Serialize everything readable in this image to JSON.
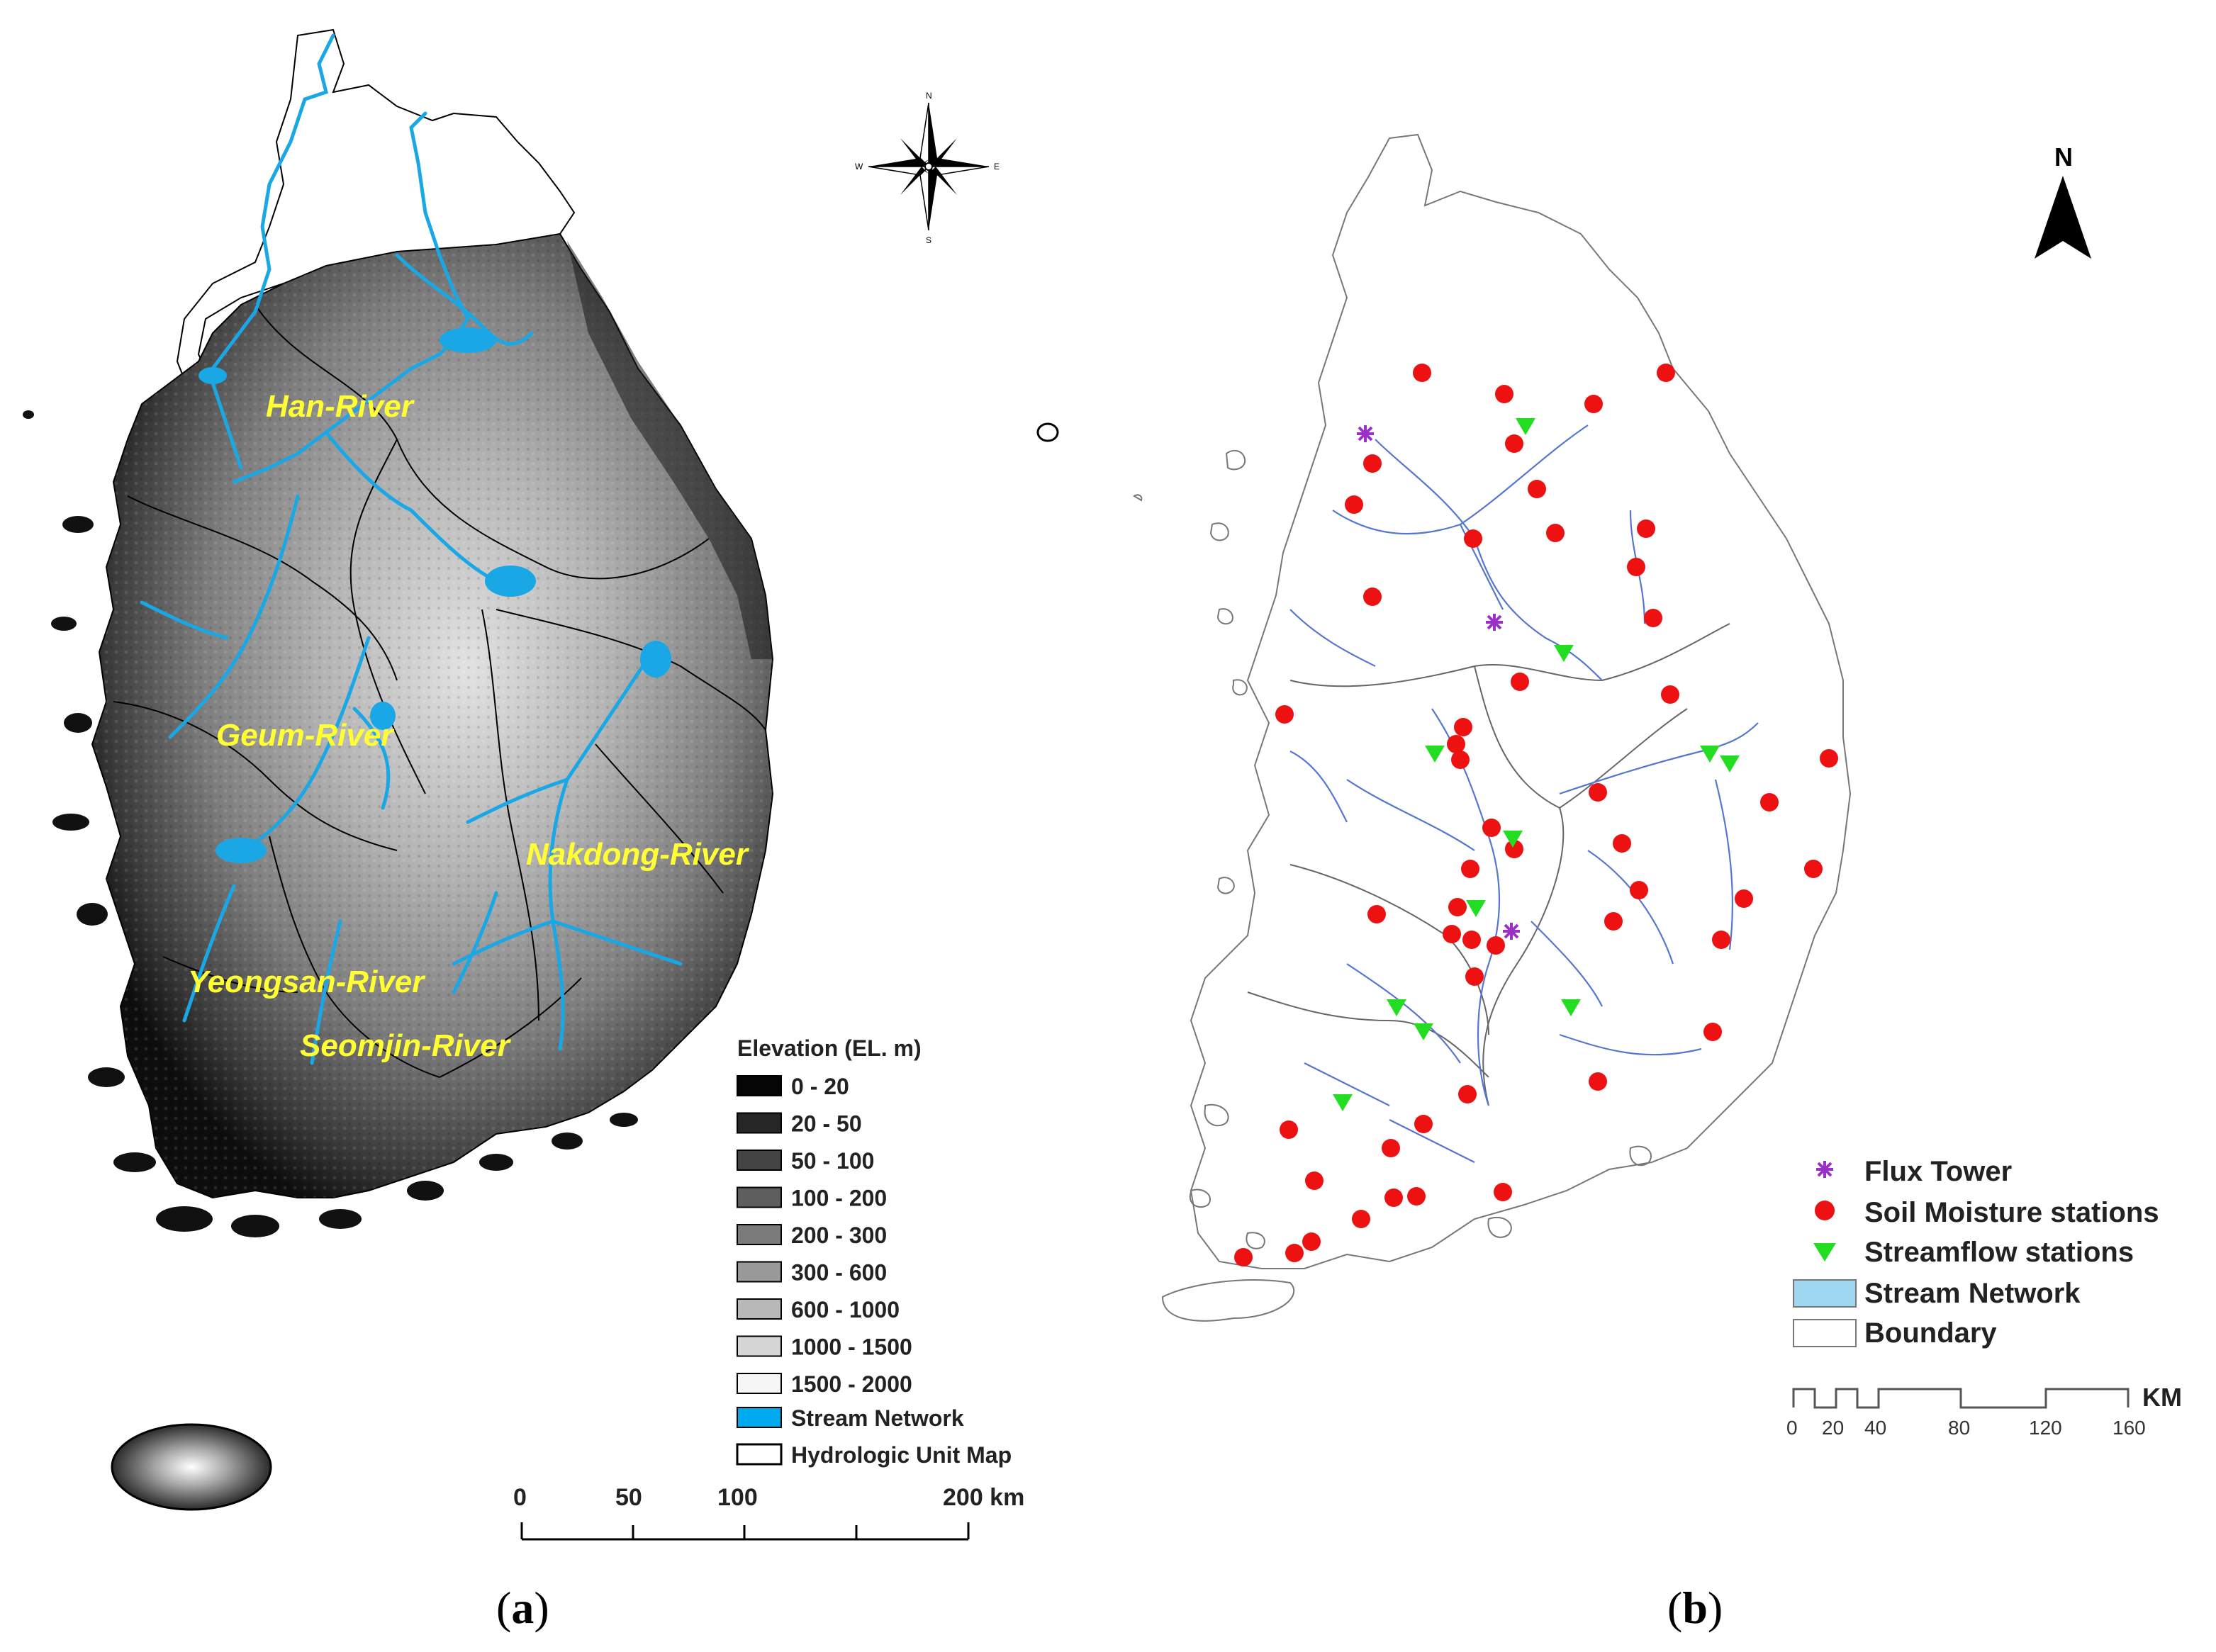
{
  "panel_a": {
    "label_open": "(",
    "label_letter": "a",
    "label_close": ")",
    "rivers": [
      {
        "name": "Han-River"
      },
      {
        "name": "Geum-River"
      },
      {
        "name": "Nakdong-River"
      },
      {
        "name": "Yeongsan-River"
      },
      {
        "name": "Seomjin-River"
      }
    ],
    "compass": {
      "n": "N",
      "s": "S",
      "e": "E",
      "w": "W"
    },
    "legend": {
      "title": "Elevation (EL. m)",
      "classes": [
        {
          "label": "0 - 20",
          "color": "#050505"
        },
        {
          "label": "20 - 50",
          "color": "#262626"
        },
        {
          "label": "50 - 100",
          "color": "#434343"
        },
        {
          "label": "100 - 200",
          "color": "#5e5e5e"
        },
        {
          "label": "200 - 300",
          "color": "#7a7a7a"
        },
        {
          "label": "300 - 600",
          "color": "#999999"
        },
        {
          "label": "600 - 1000",
          "color": "#b8b8b8"
        },
        {
          "label": "1000 - 1500",
          "color": "#d6d6d6"
        },
        {
          "label": "1500 - 2000",
          "color": "#f6f6f6"
        }
      ],
      "stream": {
        "label": "Stream Network",
        "color": "#00aaee"
      },
      "hydro": {
        "label": "Hydrologic Unit Map"
      }
    },
    "scale": {
      "ticks": [
        "0",
        "50",
        "100",
        "200 km"
      ]
    }
  },
  "panel_b": {
    "label_open": "(",
    "label_letter": "b",
    "label_close": ")",
    "north": "N",
    "legend": {
      "flux": {
        "label": "Flux Tower",
        "color": "#9b30c8"
      },
      "soil": {
        "label": "Soil Moisture stations",
        "color": "#ee1111"
      },
      "stream_st": {
        "label": "Streamflow stations",
        "color": "#22dd22"
      },
      "network": {
        "label": "Stream Network",
        "color": "#9fd6f0"
      },
      "boundary": {
        "label": "Boundary"
      }
    },
    "scale": {
      "ticks": [
        "0",
        "20",
        "40",
        "80",
        "120",
        "160"
      ],
      "unit": "KM"
    }
  }
}
